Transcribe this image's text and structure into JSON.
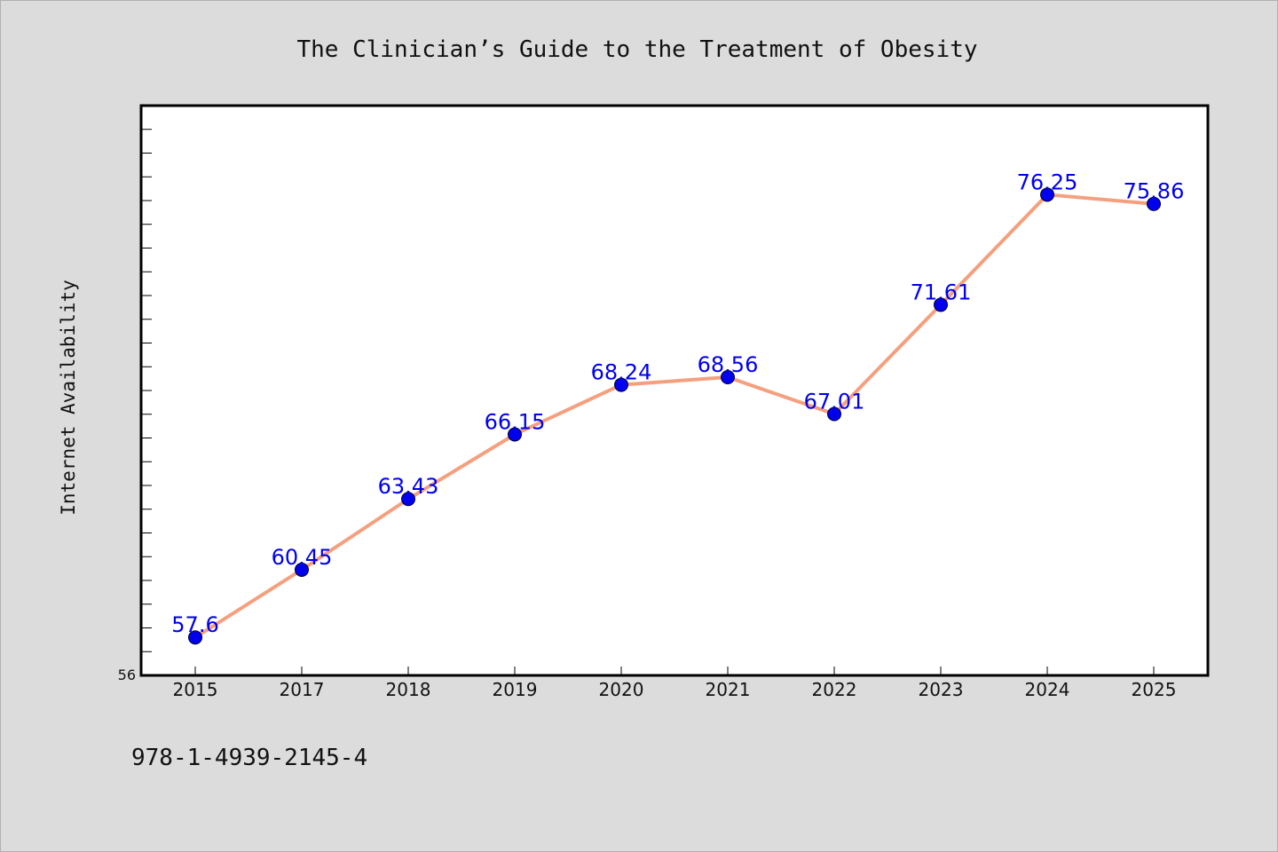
{
  "chart_data": {
    "type": "line",
    "title": "The Clinician’s Guide to the Treatment of Obesity",
    "xlabel": "",
    "ylabel": "Internet Availability",
    "categories": [
      "2015",
      "2017",
      "2018",
      "2019",
      "2020",
      "2021",
      "2022",
      "2023",
      "2024",
      "2025"
    ],
    "series": [
      {
        "values": [
          57.6,
          60.45,
          63.43,
          66.15,
          68.24,
          68.56,
          67.01,
          71.61,
          76.25,
          75.86
        ],
        "data_labels": [
          "57.6",
          "60.45",
          "63.43",
          "66.15",
          "68.24",
          "68.56",
          "67.01",
          "71.61",
          "76.25",
          "75.86"
        ]
      }
    ],
    "ylim": [
      56,
      80
    ],
    "y_tick_labels": [
      "56"
    ],
    "grid": false,
    "line_color": "#f4a07e",
    "marker_color": "#0000ee",
    "label_color": "#0000ee"
  },
  "footer": {
    "isbn": "978-1-4939-2145-4"
  }
}
